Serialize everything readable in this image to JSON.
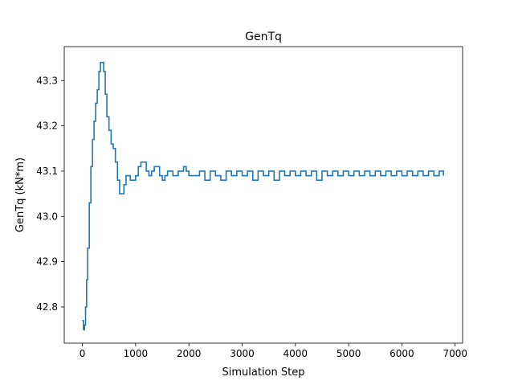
{
  "colors": {
    "line": "#1f77b4",
    "axes": "#000000",
    "background": "#ffffff"
  },
  "chart_data": {
    "type": "line",
    "title": "GenTq",
    "xlabel": "Simulation Step",
    "ylabel": "GenTq (kN*m)",
    "xlim": [
      -340,
      7140
    ],
    "ylim": [
      42.72,
      43.375
    ],
    "xticks": [
      0,
      1000,
      2000,
      3000,
      4000,
      5000,
      6000,
      7000
    ],
    "xtick_labels": [
      "0",
      "1000",
      "2000",
      "3000",
      "4000",
      "5000",
      "6000",
      "7000"
    ],
    "yticks": [
      42.8,
      42.9,
      43.0,
      43.1,
      43.2,
      43.3
    ],
    "ytick_labels": [
      "42.8",
      "42.9",
      "43.0",
      "43.1",
      "43.2",
      "43.3"
    ],
    "grid": false,
    "legend": "none",
    "series": [
      {
        "x": [
          0,
          20,
          40,
          60,
          80,
          100,
          130,
          160,
          190,
          220,
          250,
          280,
          310,
          340,
          370,
          400,
          430,
          460,
          500,
          540,
          580,
          620,
          660,
          700,
          740,
          780,
          820,
          860,
          900,
          950,
          1000,
          1050,
          1100,
          1150,
          1200,
          1250,
          1300,
          1350,
          1400,
          1450,
          1500,
          1550,
          1600,
          1650,
          1700,
          1750,
          1800,
          1850,
          1900,
          1950,
          2000,
          2100,
          2200,
          2300,
          2400,
          2500,
          2600,
          2700,
          2800,
          2900,
          3000,
          3100,
          3200,
          3300,
          3400,
          3500,
          3600,
          3700,
          3800,
          3900,
          4000,
          4100,
          4200,
          4300,
          4400,
          4500,
          4600,
          4700,
          4800,
          4900,
          5000,
          5100,
          5200,
          5300,
          5400,
          5500,
          5600,
          5700,
          5800,
          5900,
          6000,
          6100,
          6200,
          6300,
          6400,
          6500,
          6600,
          6700,
          6780
        ],
        "y": [
          42.77,
          42.75,
          42.76,
          42.8,
          42.86,
          42.93,
          43.03,
          43.11,
          43.17,
          43.21,
          43.25,
          43.28,
          43.32,
          43.34,
          43.34,
          43.32,
          43.27,
          43.22,
          43.19,
          43.16,
          43.15,
          43.12,
          43.08,
          43.05,
          43.05,
          43.07,
          43.09,
          43.09,
          43.08,
          43.08,
          43.09,
          43.11,
          43.12,
          43.12,
          43.1,
          43.09,
          43.1,
          43.11,
          43.11,
          43.09,
          43.08,
          43.09,
          43.1,
          43.1,
          43.09,
          43.09,
          43.1,
          43.1,
          43.11,
          43.1,
          43.09,
          43.09,
          43.1,
          43.08,
          43.1,
          43.09,
          43.08,
          43.1,
          43.09,
          43.1,
          43.09,
          43.1,
          43.08,
          43.1,
          43.09,
          43.1,
          43.08,
          43.1,
          43.09,
          43.1,
          43.09,
          43.1,
          43.09,
          43.1,
          43.08,
          43.1,
          43.09,
          43.1,
          43.09,
          43.1,
          43.09,
          43.1,
          43.09,
          43.1,
          43.09,
          43.1,
          43.09,
          43.1,
          43.09,
          43.1,
          43.09,
          43.1,
          43.09,
          43.1,
          43.09,
          43.1,
          43.09,
          43.1,
          43.09
        ]
      }
    ]
  }
}
